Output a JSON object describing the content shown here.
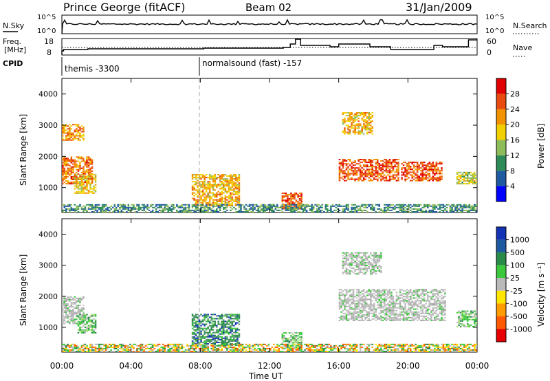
{
  "header": {
    "station": "Prince George (fitACF)",
    "beam": "Beam 02",
    "date": "31/Jan/2009"
  },
  "noise_panel": {
    "left_label": "N.Sky",
    "left_ticks": [
      "10^5",
      "10^0"
    ],
    "right_label": "N.Search",
    "right_ticks": [
      "10^5",
      "10^0"
    ]
  },
  "freq_panel": {
    "left_label_1": "Freq.",
    "left_label_2": "[MHz]",
    "left_ticks": [
      "18",
      "8"
    ],
    "right_label": "Nave",
    "right_ticks": [
      "60",
      "0"
    ]
  },
  "cpid_panel": {
    "label": "CPID",
    "entries": [
      "themis -3300",
      "normalsound (fast) -157"
    ]
  },
  "colors": {
    "power_scale": [
      "#0000ff",
      "#1e5aa0",
      "#2e8b57",
      "#8fbc5a",
      "#f2d000",
      "#f39200",
      "#e84a10",
      "#e00000"
    ],
    "velocity_scale": [
      "#1432b4",
      "#2a8a4a",
      "#3cc83c",
      "#b9b9b9",
      "#ffe600",
      "#ff9c00",
      "#ff5a00",
      "#e80000"
    ]
  },
  "chart_data": [
    {
      "type": "heatmap",
      "name": "power",
      "ylabel": "Slant Range [km]",
      "yticks": [
        "1000",
        "2000",
        "3000",
        "4000"
      ],
      "ylim": [
        200,
        4500
      ],
      "xlim_hours": [
        0,
        24
      ],
      "colorbar_label": "Power [dB]",
      "colorbar_ticks": [
        "4",
        "8",
        "12",
        "16",
        "20",
        "24",
        "28"
      ],
      "colorbar_range": [
        0,
        32
      ],
      "echo_regions": [
        {
          "t0": 0.0,
          "t1": 1.8,
          "r0": 1100,
          "r1": 2000,
          "level": 24
        },
        {
          "t0": 0.0,
          "t1": 1.3,
          "r0": 2500,
          "r1": 3000,
          "level": 22
        },
        {
          "t0": 0.7,
          "t1": 2.0,
          "r0": 800,
          "r1": 1400,
          "level": 18
        },
        {
          "t0": 7.5,
          "t1": 10.2,
          "r0": 400,
          "r1": 1400,
          "level": 20
        },
        {
          "t0": 12.7,
          "t1": 13.8,
          "r0": 300,
          "r1": 800,
          "level": 26
        },
        {
          "t0": 16.0,
          "t1": 19.5,
          "r0": 1200,
          "r1": 1900,
          "level": 26
        },
        {
          "t0": 16.2,
          "t1": 18.0,
          "r0": 2700,
          "r1": 3400,
          "level": 20
        },
        {
          "t0": 19.6,
          "t1": 22.0,
          "r0": 1200,
          "r1": 1800,
          "level": 26
        },
        {
          "t0": 22.8,
          "t1": 24.0,
          "r0": 1100,
          "r1": 1500,
          "level": 16
        },
        {
          "t0": 0.0,
          "t1": 24.0,
          "r0": 200,
          "r1": 450,
          "level": 10
        }
      ]
    },
    {
      "type": "heatmap",
      "name": "velocity",
      "ylabel": "Slant Range [km]",
      "yticks": [
        "1000",
        "2000",
        "3000",
        "4000"
      ],
      "ylim": [
        200,
        4500
      ],
      "xlim_hours": [
        0,
        24
      ],
      "colorbar_label": "Velocity [m s^-1]",
      "colorbar_ticks": [
        "1000",
        "500",
        "100",
        "25",
        "-25",
        "-100",
        "-500",
        "-1000"
      ],
      "echo_regions": [
        {
          "t0": 0.0,
          "t1": 1.3,
          "r0": 1100,
          "r1": 2000,
          "level": "ground"
        },
        {
          "t0": 0.9,
          "t1": 2.0,
          "r0": 800,
          "r1": 1400,
          "level": "slow-positive"
        },
        {
          "t0": 7.5,
          "t1": 10.2,
          "r0": 400,
          "r1": 1400,
          "level": "positive"
        },
        {
          "t0": 12.7,
          "t1": 13.8,
          "r0": 300,
          "r1": 800,
          "level": "slow-positive"
        },
        {
          "t0": 16.0,
          "t1": 22.2,
          "r0": 1200,
          "r1": 2200,
          "level": "ground"
        },
        {
          "t0": 16.2,
          "t1": 18.5,
          "r0": 2700,
          "r1": 3400,
          "level": "ground"
        },
        {
          "t0": 22.8,
          "t1": 24.0,
          "r0": 1000,
          "r1": 1500,
          "level": "slow-positive"
        },
        {
          "t0": 0.0,
          "t1": 24.0,
          "r0": 200,
          "r1": 450,
          "level": "mixed"
        }
      ]
    }
  ],
  "xaxis": {
    "ticks": [
      "00:00",
      "04:00",
      "08:00",
      "12:00",
      "16:00",
      "20:00",
      "00:00"
    ],
    "label": "Time UT"
  }
}
